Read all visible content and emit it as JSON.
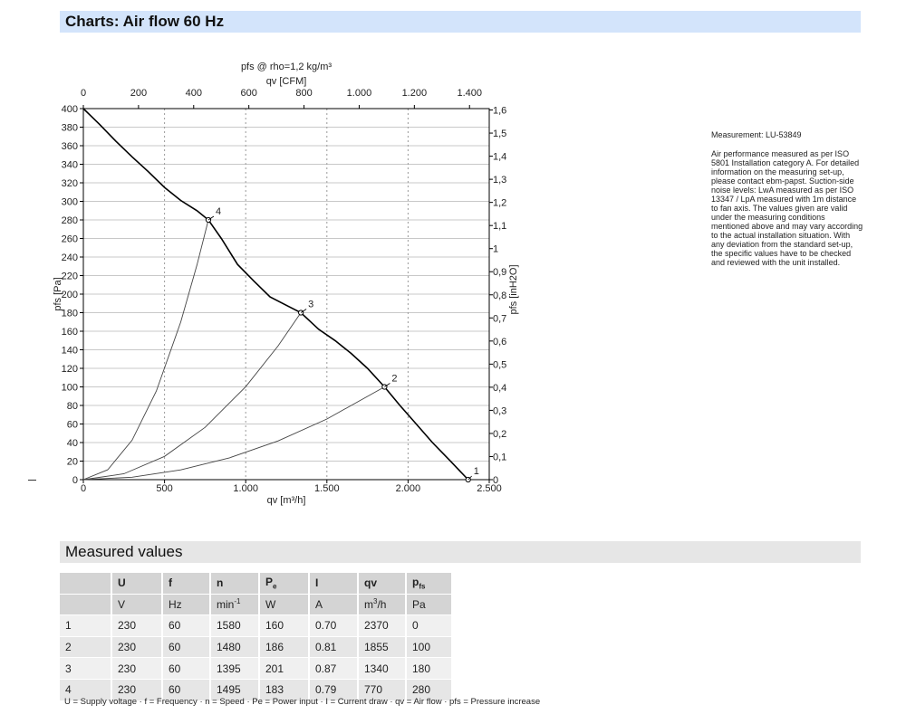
{
  "header": {
    "title": "Charts: Air flow 60 Hz"
  },
  "chart_data": {
    "type": "line",
    "title": "pfs @ rho=1,2 kg/m³",
    "xlabel": "qv [m³/h]",
    "x2label": "qv [CFM]",
    "ylabel": "pfs [Pa]",
    "y2label": "pfs [inH2O]",
    "xlim": [
      0,
      2500
    ],
    "ylim": [
      0,
      400
    ],
    "x2lim": [
      0,
      1471.5
    ],
    "y2lim": [
      0,
      1.606
    ],
    "x_ticks": [
      "0",
      "500",
      "1.000",
      "1.500",
      "2.000",
      "2.500"
    ],
    "x2_ticks": [
      "0",
      "200",
      "400",
      "600",
      "800",
      "1.000",
      "1.200",
      "1.400"
    ],
    "y_ticks": [
      "0",
      "20",
      "40",
      "60",
      "80",
      "100",
      "120",
      "140",
      "160",
      "180",
      "200",
      "220",
      "240",
      "260",
      "280",
      "300",
      "320",
      "340",
      "360",
      "380",
      "400"
    ],
    "y2_ticks": [
      "0",
      "0,1",
      "0,2",
      "0,3",
      "0,4",
      "0,5",
      "0,6",
      "0,7",
      "0,8",
      "0,9",
      "1",
      "1,1",
      "1,2",
      "1,3",
      "1,4",
      "1,5",
      "1,6"
    ],
    "grid": true,
    "series": [
      {
        "role": "fan-curve",
        "x": [
          0,
          100,
          200,
          300,
          400,
          500,
          600,
          700,
          770,
          850,
          950,
          1050,
          1150,
          1250,
          1340,
          1450,
          1550,
          1650,
          1750,
          1855,
          1950,
          2050,
          2150,
          2250,
          2370
        ],
        "y": [
          400,
          383,
          365,
          348,
          332,
          315,
          301,
          290,
          280,
          260,
          232,
          214,
          197,
          188,
          180,
          162,
          150,
          136,
          120,
          100,
          80,
          60,
          40,
          22,
          0
        ]
      },
      {
        "role": "system-line-2",
        "x": [
          0,
          300,
          600,
          900,
          1200,
          1500,
          1855
        ],
        "y": [
          0,
          2.6,
          10.5,
          23.5,
          41.8,
          65.4,
          100
        ]
      },
      {
        "role": "system-line-3",
        "x": [
          0,
          250,
          500,
          750,
          1000,
          1200,
          1340
        ],
        "y": [
          0,
          6.3,
          25.1,
          56.4,
          100.2,
          144.3,
          180
        ]
      },
      {
        "role": "system-line-4",
        "x": [
          0,
          150,
          300,
          450,
          600,
          700,
          770
        ],
        "y": [
          0,
          10.6,
          42.5,
          95.6,
          170,
          231.4,
          280
        ]
      }
    ],
    "points": [
      {
        "label": "1",
        "x": 2370,
        "y": 0
      },
      {
        "label": "2",
        "x": 1855,
        "y": 100
      },
      {
        "label": "3",
        "x": 1340,
        "y": 180
      },
      {
        "label": "4",
        "x": 770,
        "y": 280
      }
    ]
  },
  "note": {
    "measurement": "Measurement: LU-53849",
    "text": "Air performance measured as per ISO 5801 Installation category A. For detailed information on the measuring set-up, please contact ebm-papst. Suction-side noise levels: LwA measured as per ISO 13347 / LpA measured with 1m distance to fan axis. The values given are valid under the measuring conditions mentioned above and may vary according to the actual installation situation. With any deviation from the standard set-up, the specific values have to be checked and reviewed with the unit installed."
  },
  "measured": {
    "title": "Measured values",
    "headers": [
      "",
      "U",
      "f",
      "n",
      "Pe",
      "I",
      "qv",
      "pfs"
    ],
    "units": [
      "",
      "V",
      "Hz",
      "min-1",
      "W",
      "A",
      "m3/h",
      "Pa"
    ],
    "rows": [
      [
        "1",
        "230",
        "60",
        "1580",
        "160",
        "0.70",
        "2370",
        "0"
      ],
      [
        "2",
        "230",
        "60",
        "1480",
        "186",
        "0.81",
        "1855",
        "100"
      ],
      [
        "3",
        "230",
        "60",
        "1395",
        "201",
        "0.87",
        "1340",
        "180"
      ],
      [
        "4",
        "230",
        "60",
        "1495",
        "183",
        "0.79",
        "770",
        "280"
      ]
    ],
    "legend": "U = Supply voltage · f = Frequency · n = Speed · Pe = Power input · I = Current draw · qv = Air flow · pfs = Pressure increase"
  }
}
